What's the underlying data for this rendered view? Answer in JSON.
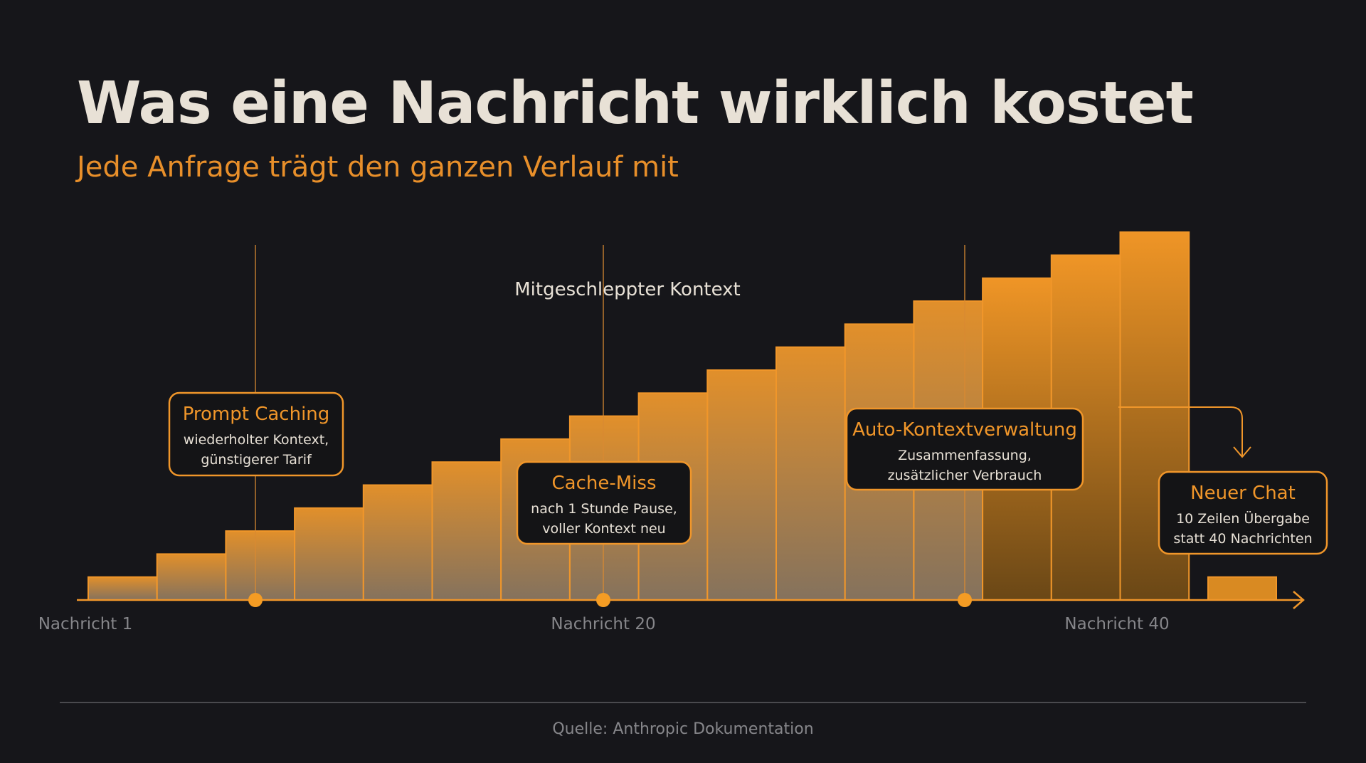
{
  "title": "Was eine Nachricht wirklich kostet",
  "subtitle": "Jede Anfrage trägt den ganzen Verlauf mit",
  "source": "Quelle: Anthropic Dokumentation",
  "colors": {
    "accent": "#f0962a",
    "background": "#16161a",
    "text": "#e8e1d6",
    "muted": "#86868a"
  },
  "chart_data": {
    "type": "bar",
    "title": "Was eine Nachricht wirklich kostet",
    "subtitle": "Jede Anfrage trägt den ganzen Verlauf mit",
    "ylabel": "Mitgeschleppter Kontext",
    "x_ticks": [
      {
        "label": "Nachricht 1",
        "x": 1
      },
      {
        "label": "Nachricht 20",
        "x": 20
      },
      {
        "label": "Nachricht 40",
        "x": 40
      }
    ],
    "values": [
      1,
      2,
      3,
      4,
      5,
      6,
      7,
      8,
      9,
      10,
      11,
      12,
      13,
      14,
      15,
      16
    ],
    "new_chat_value": 1,
    "annotations": [
      {
        "title": "Prompt Caching",
        "lines": [
          "wiederholter Kontext,",
          "günstigerer Tarif"
        ]
      },
      {
        "title": "Cache-Miss",
        "lines": [
          "nach 1 Stunde Pause,",
          "voller Kontext neu"
        ]
      },
      {
        "title": "Auto-Kontextverwaltung",
        "lines": [
          "Zusammenfassung,",
          "zusätzlicher Verbrauch"
        ]
      },
      {
        "title": "Neuer Chat",
        "lines": [
          "10 Zeilen Übergabe",
          "statt 40 Nachrichten"
        ]
      }
    ]
  }
}
